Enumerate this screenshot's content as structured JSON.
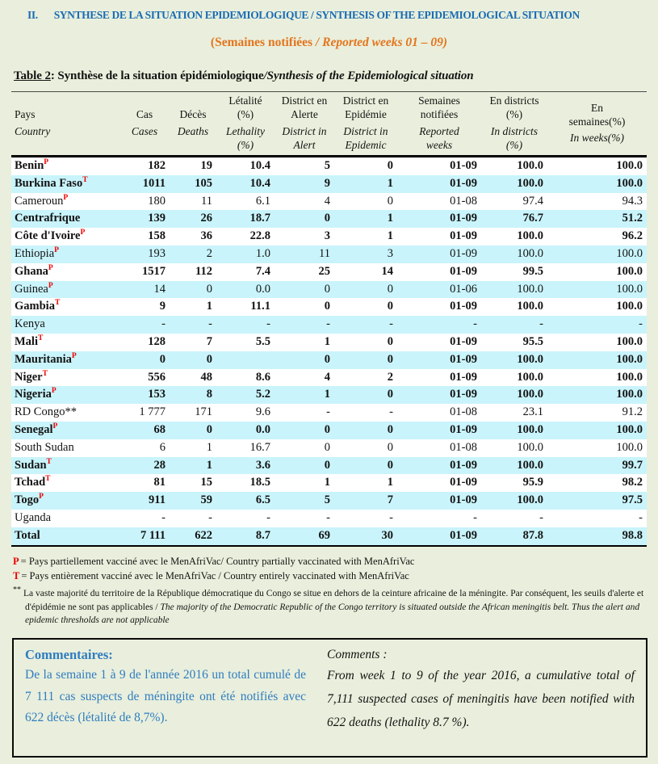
{
  "colors": {
    "blue": "#1b6cb3",
    "orange": "#e4751e",
    "red": "#ee0000",
    "cyan": "#c9f4fb",
    "commentBlue": "#2f7cc0",
    "pageBg": "#e9efdc"
  },
  "header": {
    "number": "II.",
    "title": "SYNTHESE DE LA SITUATION EPIDEMIOLOGIQUE / SYNTHESIS OF THE EPIDEMIOLOGICAL SITUATION",
    "subtitle_fr": "(Semaines notifiées ",
    "subtitle_en": "/ Reported weeks 01 – 09)"
  },
  "caption": {
    "label": "Table 2",
    "fr": ": Synthèse de la situation épidémiologique",
    "en": "/Synthesis of the Epidemiological situation"
  },
  "table": {
    "columns": [
      {
        "fr": "Pays",
        "en": "Country"
      },
      {
        "fr": "Cas",
        "en": "Cases"
      },
      {
        "fr": "Décès",
        "en": "Deaths"
      },
      {
        "fr": "Létalité\n(%)",
        "en": "Lethality\n(%)"
      },
      {
        "fr": "District en\nAlerte",
        "en": "District in\nAlert"
      },
      {
        "fr": "District en\nEpidémie",
        "en": "District in\nEpidemic"
      },
      {
        "fr": "Semaines\nnotifiées",
        "en": "Reported\nweeks"
      },
      {
        "fr": "En districts\n(%)",
        "en": "In districts\n(%)"
      },
      {
        "fr": "En\nsemaines(%)",
        "en": "In weeks(%)"
      }
    ],
    "rows": [
      {
        "country": "Benin",
        "sup": "P",
        "bold": true,
        "values": [
          "182",
          "19",
          "10.4",
          "5",
          "0",
          "01-09",
          "100.0",
          "100.0"
        ]
      },
      {
        "country": "Burkina Faso",
        "sup": "T",
        "bold": true,
        "values": [
          "1011",
          "105",
          "10.4",
          "9",
          "1",
          "01-09",
          "100.0",
          "100.0"
        ]
      },
      {
        "country": "Cameroun",
        "sup": "P",
        "bold": false,
        "values": [
          "180",
          "11",
          "6.1",
          "4",
          "0",
          "01-08",
          "97.4",
          "94.3"
        ]
      },
      {
        "country": "Centrafrique",
        "sup": "",
        "bold": true,
        "values": [
          "139",
          "26",
          "18.7",
          "0",
          "1",
          "01-09",
          "76.7",
          "51.2"
        ]
      },
      {
        "country": "Côte d'Ivoire",
        "sup": "P",
        "bold": true,
        "values": [
          "158",
          "36",
          "22.8",
          "3",
          "1",
          "01-09",
          "100.0",
          "96.2"
        ]
      },
      {
        "country": "Ethiopia",
        "sup": "P",
        "bold": false,
        "values": [
          "193",
          "2",
          "1.0",
          "11",
          "3",
          "01-09",
          "100.0",
          "100.0"
        ]
      },
      {
        "country": "Ghana",
        "sup": "P",
        "bold": true,
        "values": [
          "1517",
          "112",
          "7.4",
          "25",
          "14",
          "01-09",
          "99.5",
          "100.0"
        ]
      },
      {
        "country": "Guinea",
        "sup": "P",
        "bold": false,
        "values": [
          "14",
          "0",
          "0.0",
          "0",
          "0",
          "01-06",
          "100.0",
          "100.0"
        ]
      },
      {
        "country": "Gambia",
        "sup": "T",
        "bold": true,
        "values": [
          "9",
          "1",
          "11.1",
          "0",
          "0",
          "01-09",
          "100.0",
          "100.0"
        ]
      },
      {
        "country": "Kenya",
        "sup": "",
        "bold": false,
        "values": [
          "-",
          "-",
          "-",
          "-",
          "-",
          "-",
          "-",
          "-"
        ]
      },
      {
        "country": "Mali",
        "sup": "T",
        "bold": true,
        "values": [
          "128",
          "7",
          "5.5",
          "1",
          "0",
          "01-09",
          "95.5",
          "100.0"
        ]
      },
      {
        "country": "Mauritania",
        "sup": "P",
        "bold": true,
        "values": [
          "0",
          "0",
          "",
          "0",
          "0",
          "01-09",
          "100.0",
          "100.0"
        ]
      },
      {
        "country": "Niger",
        "sup": "T",
        "bold": true,
        "values": [
          "556",
          "48",
          "8.6",
          "4",
          "2",
          "01-09",
          "100.0",
          "100.0"
        ]
      },
      {
        "country": "Nigeria",
        "sup": "P",
        "bold": true,
        "values": [
          "153",
          "8",
          "5.2",
          "1",
          "0",
          "01-09",
          "100.0",
          "100.0"
        ]
      },
      {
        "country": "RD Congo**",
        "sup": "",
        "bold": false,
        "values": [
          "1 777",
          "171",
          "9.6",
          "-",
          "-",
          "01-08",
          "23.1",
          "91.2"
        ]
      },
      {
        "country": "Senegal",
        "sup": "P",
        "bold": true,
        "values": [
          "68",
          "0",
          "0.0",
          "0",
          "0",
          "01-09",
          "100.0",
          "100.0"
        ]
      },
      {
        "country": "South Sudan",
        "sup": "",
        "bold": false,
        "values": [
          "6",
          "1",
          "16.7",
          "0",
          "0",
          "01-08",
          "100.0",
          "100.0"
        ]
      },
      {
        "country": "Sudan",
        "sup": "T",
        "bold": true,
        "values": [
          "28",
          "1",
          "3.6",
          "0",
          "0",
          "01-09",
          "100.0",
          "99.7"
        ]
      },
      {
        "country": "Tchad",
        "sup": "T",
        "bold": true,
        "values": [
          "81",
          "15",
          "18.5",
          "1",
          "1",
          "01-09",
          "95.9",
          "98.2"
        ]
      },
      {
        "country": "Togo",
        "sup": "P",
        "bold": true,
        "values": [
          "911",
          "59",
          "6.5",
          "5",
          "7",
          "01-09",
          "100.0",
          "97.5"
        ]
      },
      {
        "country": "Uganda",
        "sup": "",
        "bold": false,
        "values": [
          "-",
          "-",
          "-",
          "-",
          "-",
          "-",
          "-",
          "-"
        ]
      },
      {
        "country": "Total",
        "sup": "",
        "bold": true,
        "values": [
          "7 111",
          "622",
          "8.7",
          "69",
          "30",
          "01-09",
          "87.8",
          "98.8"
        ]
      }
    ]
  },
  "footnotes": {
    "p": {
      "marker": "P",
      "text": "= Pays partiellement vacciné avec le MenAfriVac/ Country partially  vaccinated with MenAfriVac"
    },
    "t": {
      "marker": "T",
      "text": "= Pays entièrement vacciné avec le MenAfriVac / Country entirely  vaccinated with MenAfriVac"
    },
    "congo": {
      "marker": "**",
      "fr": "La vaste majorité du territoire de la République démocratique du Congo se situe en dehors de la ceinture africaine de la méningite. Par conséquent, les seuils d'alerte et d'épidémie ne sont pas applicables / ",
      "en": "The majority of the Democratic Republic of the Congo territory is situated outside the African meningitis belt. Thus the alert and epidemic thresholds are not applicable"
    }
  },
  "comments": {
    "fr_title": "Commentaires:",
    "fr_body": "De la semaine 1 à 9 de l'année 2016 un total cumulé de 7 111 cas suspects de méningite ont été notifiés avec 622 décès (létalité de 8,7%).",
    "en_title": "Comments :",
    "en_body": "From week 1 to 9 of the year 2016, a cumulative total of 7,111 suspected cases of meningitis have been notified with 622 deaths (lethality 8.7 %)."
  }
}
